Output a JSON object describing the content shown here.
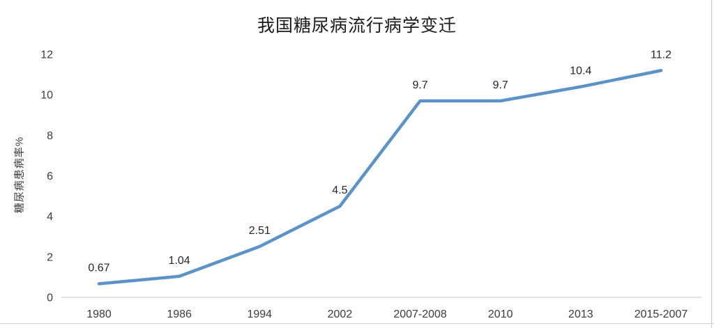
{
  "chart_data": {
    "type": "line",
    "title": "我国糖尿病流行病学变迁",
    "ylabel": "糖尿病患病率%",
    "xlabel": "",
    "categories": [
      "1980",
      "1986",
      "1994",
      "2002",
      "2007-2008",
      "2010",
      "2013",
      "2015-2007"
    ],
    "values": [
      0.67,
      1.04,
      2.51,
      4.5,
      9.7,
      9.7,
      10.4,
      11.2
    ],
    "data_labels": [
      "0.67",
      "1.04",
      "2.51",
      "4.5",
      "9.7",
      "9.7",
      "10.4",
      "11.2"
    ],
    "series_name": "糖尿病患病率%",
    "ylim": [
      0,
      12
    ],
    "yticks": [
      0,
      2,
      4,
      6,
      8,
      10,
      12
    ],
    "grid": false,
    "legend": "none",
    "markers": "none",
    "colors": {
      "line": "#5B93C8",
      "axis": "#D9D9D9",
      "tick_text": "#3B3B3B",
      "data_label_text": "#262626",
      "title_text": "#1A1A1A",
      "background": "#FFFFFF"
    }
  }
}
